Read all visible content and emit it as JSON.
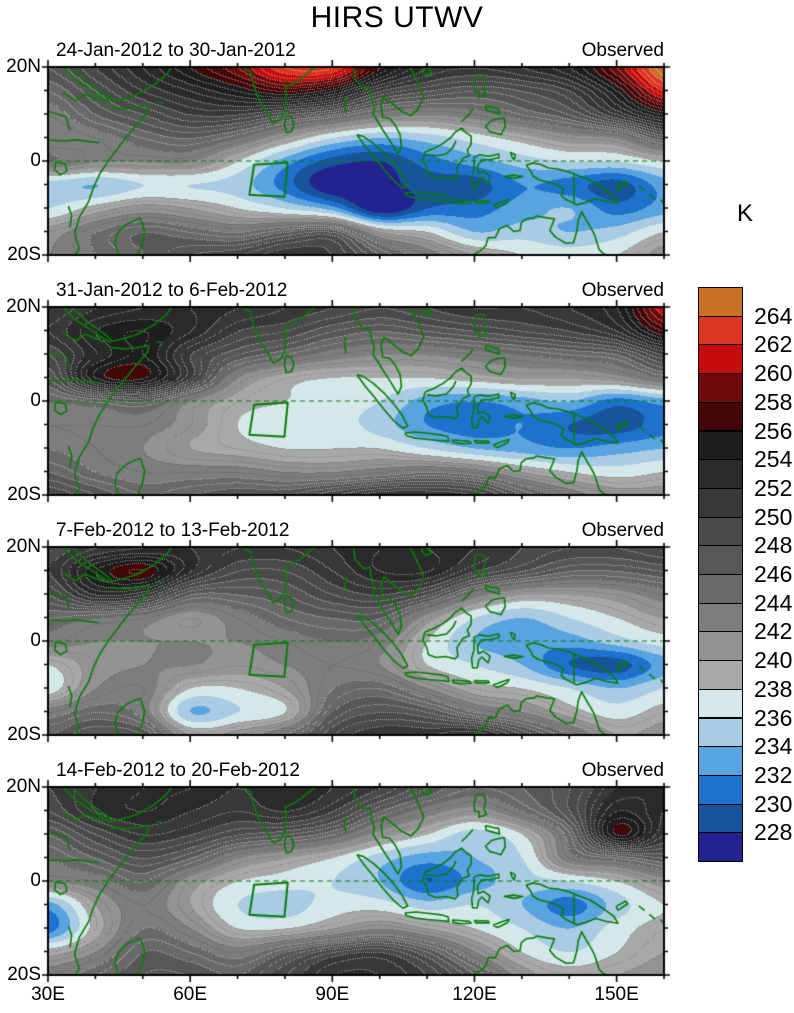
{
  "chart_data": {
    "type": "heatmap",
    "title": "HIRS UTWV",
    "colorbar": {
      "units": "K",
      "boundary_labels": [
        "264",
        "262",
        "260",
        "258",
        "256",
        "254",
        "252",
        "250",
        "248",
        "246",
        "244",
        "242",
        "240",
        "238",
        "236",
        "234",
        "232",
        "230",
        "228"
      ],
      "colors_top_to_bottom": [
        "#c87227",
        "#da3620",
        "#c60c0c",
        "#6e0b0b",
        "#420707",
        "#1e1e1e",
        "#2a2a2a",
        "#383838",
        "#4a4a4a",
        "#575757",
        "#696969",
        "#7d7d7d",
        "#939393",
        "#a8a8a8",
        "#d5e8e9",
        "#a9cbe3",
        "#59a3e0",
        "#1e72ce",
        "#17549c",
        "#23238f"
      ],
      "level_min_k": 226,
      "level_max_k": 266,
      "level_step_k": 2
    },
    "x_axis": {
      "tick_labels": [
        "30E",
        "60E",
        "90E",
        "120E",
        "150E"
      ],
      "lon_range": [
        30,
        160
      ]
    },
    "y_axis": {
      "tick_labels": [
        "20N",
        "0",
        "20S"
      ],
      "lat_range": [
        20,
        -20
      ]
    },
    "overlay": {
      "coast_color": "#0a7d0a",
      "equator_dashed": true,
      "study_box_lonlat": [
        [
          73.5,
          -0.8
        ],
        [
          80.6,
          -0.3
        ],
        [
          79.9,
          -7.6
        ],
        [
          72.5,
          -7.2
        ]
      ]
    },
    "panels": [
      {
        "label": "24-Jan-2012 to 30-Jan-2012",
        "source": "Observed",
        "grid": {
          "lons": [
            30,
            40,
            50,
            60,
            70,
            80,
            90,
            100,
            110,
            120,
            130,
            140,
            150,
            160
          ],
          "lats": [
            20,
            15,
            10,
            5,
            0,
            -5,
            -10,
            -15,
            -20
          ],
          "values_k": [
            [
              247,
              250,
              253,
              256,
              259,
              263,
              263,
              256,
              252,
              251,
              252,
              254,
              259,
              266
            ],
            [
              245,
              248,
              251,
              253,
              255,
              257,
              255,
              250,
              248,
              247,
              248,
              250,
              255,
              262
            ],
            [
              243,
              246,
              248,
              250,
              250,
              248,
              246,
              243,
              242,
              243,
              245,
              247,
              251,
              255
            ],
            [
              242,
              243,
              245,
              246,
              244,
              240,
              236,
              234,
              235,
              237,
              239,
              241,
              242,
              247
            ],
            [
              244,
              242,
              242,
              242,
              238,
              233,
              229,
              228,
              231,
              233,
              235,
              236,
              236,
              238
            ],
            [
              235,
              234,
              236,
              236,
              235,
              231,
              226,
              227,
              229,
              229,
              232,
              231,
              229,
              233
            ],
            [
              236,
              239,
              241,
              240,
              238,
              236,
              233,
              226,
              230,
              231,
              233,
              234,
              231,
              233
            ],
            [
              241,
              244,
              246,
              245,
              244,
              246,
              247,
              240,
              238,
              234,
              235,
              234,
              235,
              238
            ],
            [
              242,
              244,
              246,
              248,
              249,
              251,
              250,
              246,
              243,
              240,
              238,
              237,
              238,
              241
            ]
          ]
        }
      },
      {
        "label": "31-Jan-2012 to 6-Feb-2012",
        "source": "Observed",
        "grid": {
          "lons": [
            30,
            40,
            50,
            60,
            70,
            80,
            90,
            100,
            110,
            120,
            130,
            140,
            150,
            160
          ],
          "lats": [
            20,
            15,
            10,
            5,
            0,
            -5,
            -10,
            -15,
            -20
          ],
          "values_k": [
            [
              250,
              252,
              253,
              253,
              252,
              251,
              250,
              249,
              250,
              251,
              251,
              252,
              254,
              261
            ],
            [
              251,
              254,
              255,
              253,
              250,
              249,
              247,
              246,
              247,
              248,
              249,
              250,
              252,
              257
            ],
            [
              249,
              253,
              255,
              250,
              247,
              245,
              243,
              242,
              242,
              243,
              244,
              245,
              246,
              250
            ],
            [
              247,
              255,
              256,
              250,
              242,
              239,
              238,
              238,
              238,
              239,
              240,
              240,
              241,
              244
            ],
            [
              244,
              245,
              246,
              242,
              239,
              238,
              237,
              236,
              233,
              232,
              233,
              234,
              231,
              233
            ],
            [
              243,
              243,
              243,
              241,
              238,
              237,
              237,
              235,
              232,
              231,
              232,
              230,
              229,
              231
            ],
            [
              244,
              243,
              242,
              240,
              239,
              238,
              238,
              238,
              236,
              234,
              233,
              232,
              233,
              234
            ],
            [
              246,
              244,
              243,
              243,
              243,
              242,
              242,
              243,
              244,
              243,
              240,
              238,
              237,
              238
            ],
            [
              249,
              247,
              245,
              246,
              247,
              247,
              249,
              251,
              251,
              250,
              246,
              243,
              241,
              241
            ]
          ]
        }
      },
      {
        "label": "7-Feb-2012 to 13-Feb-2012",
        "source": "Observed",
        "grid": {
          "lons": [
            30,
            40,
            50,
            60,
            70,
            80,
            90,
            100,
            110,
            120,
            130,
            140,
            150,
            160
          ],
          "lats": [
            20,
            15,
            10,
            5,
            0,
            -5,
            -10,
            -15,
            -20
          ],
          "values_k": [
            [
              249,
              251,
              252,
              252,
              251,
              251,
              252,
              253,
              253,
              252,
              250,
              249,
              249,
              250
            ],
            [
              250,
              255,
              257,
              252,
              249,
              249,
              251,
              253,
              253,
              250,
              248,
              246,
              246,
              247
            ],
            [
              248,
              252,
              251,
              246,
              246,
              247,
              249,
              250,
              248,
              243,
              240,
              240,
              241,
              243
            ],
            [
              245,
              244,
              243,
              241,
              243,
              245,
              246,
              246,
              241,
              236,
              234,
              236,
              238,
              240
            ],
            [
              243,
              242,
              242,
              242,
              242,
              243,
              244,
              243,
              238,
              234,
              233,
              233,
              235,
              237
            ],
            [
              238,
              241,
              242,
              242,
              241,
              242,
              243,
              242,
              238,
              236,
              234,
              230,
              229,
              233
            ],
            [
              237,
              242,
              243,
              238,
              238,
              240,
              244,
              245,
              242,
              239,
              238,
              236,
              234,
              236
            ],
            [
              243,
              245,
              243,
              234,
              236,
              238,
              246,
              248,
              247,
              244,
              242,
              239,
              237,
              239
            ],
            [
              246,
              248,
              247,
              240,
              241,
              244,
              249,
              251,
              251,
              252,
              248,
              244,
              240,
              241
            ]
          ]
        }
      },
      {
        "label": "14-Feb-2012 to 20-Feb-2012",
        "source": "Observed",
        "grid": {
          "lons": [
            30,
            40,
            50,
            60,
            70,
            80,
            90,
            100,
            110,
            120,
            130,
            140,
            150,
            160
          ],
          "lats": [
            20,
            15,
            10,
            5,
            0,
            -5,
            -10,
            -15,
            -20
          ],
          "values_k": [
            [
              250,
              252,
              253,
              253,
              252,
              253,
              252,
              250,
              247,
              245,
              246,
              248,
              252,
              253
            ],
            [
              249,
              252,
              253,
              252,
              251,
              252,
              250,
              246,
              243,
              241,
              244,
              248,
              254,
              252
            ],
            [
              246,
              249,
              251,
              250,
              248,
              247,
              245,
              241,
              238,
              235,
              238,
              245,
              256,
              251
            ],
            [
              244,
              246,
              248,
              246,
              242,
              240,
              238,
              235,
              233,
              234,
              236,
              243,
              245,
              247
            ],
            [
              242,
              243,
              245,
              241,
              238,
              237,
              236,
              234,
              230,
              233,
              235,
              236,
              238,
              241
            ],
            [
              233,
              240,
              243,
              240,
              236,
              235,
              237,
              237,
              235,
              236,
              234,
              231,
              235,
              238
            ],
            [
              231,
              239,
              244,
              242,
              238,
              238,
              240,
              242,
              240,
              238,
              236,
              234,
              237,
              239
            ],
            [
              239,
              242,
              246,
              245,
              243,
              246,
              249,
              250,
              247,
              242,
              238,
              236,
              238,
              240
            ],
            [
              243,
              245,
              247,
              247,
              246,
              249,
              252,
              252,
              250,
              246,
              241,
              239,
              240,
              241
            ]
          ]
        }
      }
    ]
  }
}
